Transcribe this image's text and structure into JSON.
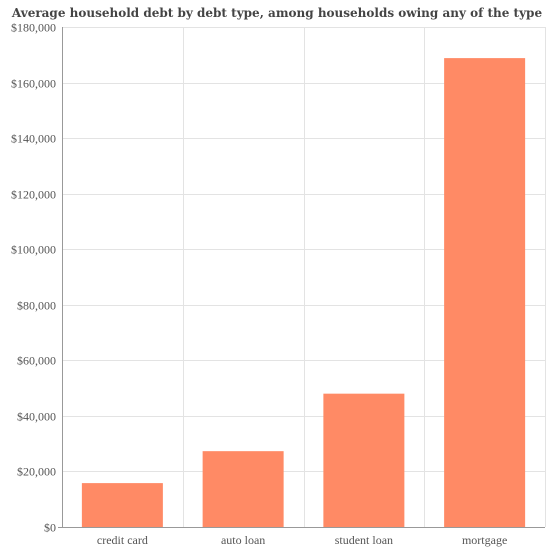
{
  "chart_data": {
    "type": "bar",
    "title": "Average household debt by debt type, among households owing any of the type",
    "xlabel": "",
    "ylabel": "",
    "categories": [
      "credit card",
      "auto loan",
      "student loan",
      "mortgage"
    ],
    "values": [
      15800,
      27300,
      48000,
      168800
    ],
    "ylim": [
      0,
      180000
    ],
    "yticks": [
      0,
      20000,
      40000,
      60000,
      80000,
      100000,
      120000,
      140000,
      160000,
      180000
    ],
    "ytick_labels": [
      "$0",
      "$20,000",
      "$40,000",
      "$60,000",
      "$80,000",
      "$100,000",
      "$120,000",
      "$140,000",
      "$160,000",
      "$180,000"
    ],
    "grid": true,
    "legend": "none",
    "colors": {
      "bar": "#FF8A65",
      "grid": "#e3e3e3",
      "axis": "#999999"
    }
  }
}
